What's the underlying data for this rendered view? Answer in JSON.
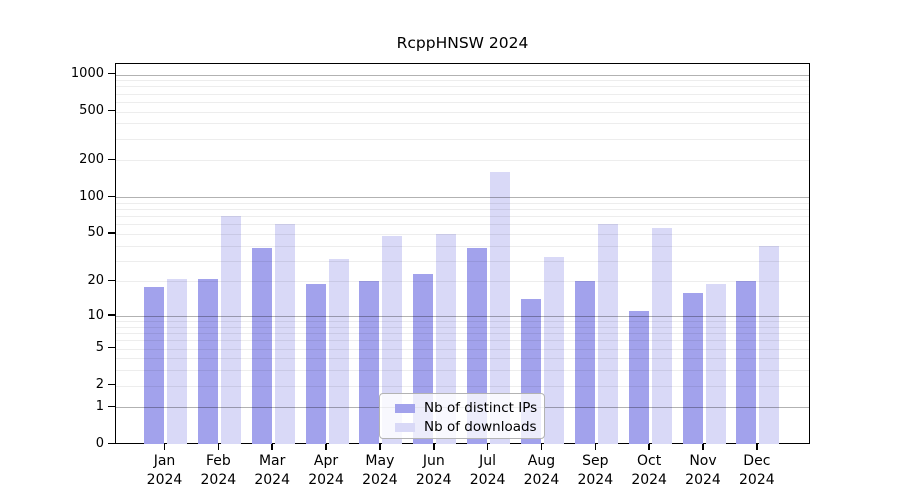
{
  "title": "RcppHNSW 2024",
  "chart_data": {
    "type": "bar",
    "title": "RcppHNSW 2024",
    "categories": [
      "Jan",
      "Feb",
      "Mar",
      "Apr",
      "May",
      "Jun",
      "Jul",
      "Aug",
      "Sep",
      "Oct",
      "Nov",
      "Dec"
    ],
    "year": "2024",
    "x_tick_labels": [
      "Jan\n2024",
      "Feb\n2024",
      "Mar\n2024",
      "Apr\n2024",
      "May\n2024",
      "Jun\n2024",
      "Jul\n2024",
      "Aug\n2024",
      "Sep\n2024",
      "Oct\n2024",
      "Nov\n2024",
      "Dec\n2024"
    ],
    "series": [
      {
        "name": "Nb of distinct IPs",
        "color": "#a2a2ec",
        "values": [
          18,
          21,
          38,
          19,
          20,
          23,
          38,
          14,
          20,
          11,
          16,
          20
        ]
      },
      {
        "name": "Nb of downloads",
        "color": "#d9d9f7",
        "values": [
          21,
          70,
          60,
          31,
          48,
          50,
          160,
          32,
          60,
          56,
          19,
          40
        ]
      }
    ],
    "y_axis": {
      "scale": "log1p",
      "tick_values": [
        0,
        1,
        2,
        5,
        10,
        20,
        50,
        100,
        200,
        500,
        1000
      ],
      "tick_labels": [
        "0",
        "1",
        "2",
        "5",
        "10",
        "20",
        "50",
        "100",
        "200",
        "500",
        "1000"
      ],
      "range_min": 0,
      "range_max": 1000
    },
    "grid": "horizontal, log decades darker with faint minor lines",
    "legend": {
      "position": "bottom-center",
      "items": [
        {
          "label": "Nb of distinct IPs",
          "color": "#a2a2ec"
        },
        {
          "label": "Nb of downloads",
          "color": "#d9d9f7"
        }
      ]
    }
  }
}
